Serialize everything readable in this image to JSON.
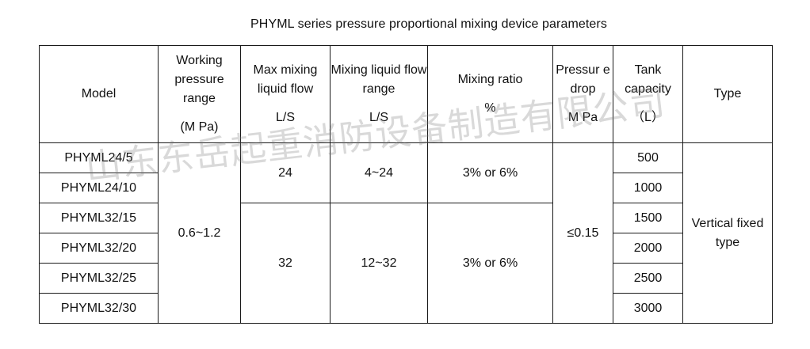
{
  "title": "PHYML series pressure proportional mixing device parameters",
  "headers": {
    "model": "Model",
    "working_pressure": "Working pressure range",
    "working_pressure_unit": "(M Pa)",
    "max_flow": "Max mixing liquid flow",
    "max_flow_unit": "L/S",
    "flow_range": "Mixing liquid flow range",
    "flow_range_unit": "L/S",
    "mixing_ratio": "Mixing ratio",
    "mixing_ratio_unit": "%",
    "pressure_drop": "Pressur e drop",
    "pressure_drop_unit": "M Pa",
    "tank_capacity": "Tank capacity",
    "tank_capacity_unit": "（L）",
    "type": "Type"
  },
  "models": [
    "PHYML24/5",
    "PHYML24/10",
    "PHYML32/15",
    "PHYML32/20",
    "PHYML32/25",
    "PHYML32/30"
  ],
  "working_pressure": "0.6~1.2",
  "groups": [
    {
      "max_flow": "24",
      "flow_range": "4~24",
      "mixing_ratio": "3% or 6%"
    },
    {
      "max_flow": "32",
      "flow_range": "12~32",
      "mixing_ratio": "3% or 6%"
    }
  ],
  "pressure_drop": "≤0.15",
  "tank_capacities": [
    "500",
    "1000",
    "1500",
    "2000",
    "2500",
    "3000"
  ],
  "type": "Vertical fixed type",
  "watermark": "山东东岳起重消防设备制造有限公司"
}
